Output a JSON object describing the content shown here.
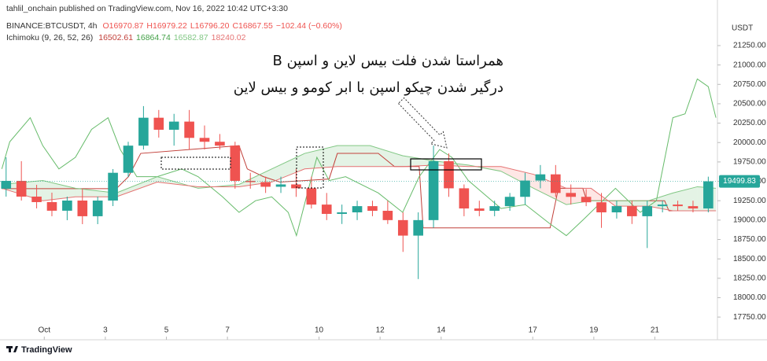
{
  "header": {
    "attribution": "tahlil_onchain published on TradingView.com, Nov 16, 2022 10:42 UTC+3:30",
    "symbol": "BINANCE:BTCUSDT, 4h",
    "ohlc": [
      "O16970.87",
      "H16979.22",
      "L16796.20",
      "C16867.55",
      "−102.44 (−0.60%)"
    ],
    "indicator": "Ichimoku (9, 26, 52, 26)",
    "indicator_values": [
      {
        "text": "16502.61",
        "color": "#c2403a"
      },
      {
        "text": "16864.74",
        "color": "#43a047"
      },
      {
        "text": "16582.87",
        "color": "#81c784"
      },
      {
        "text": "18240.02",
        "color": "#e57373"
      }
    ]
  },
  "footer": {
    "brand": "TradingView"
  },
  "chart_data": {
    "type": "candlestick",
    "y_axis_label": "USDT",
    "annotations": [
      "همراستا شدن فلت بیس لاین و اسپن B",
      "درگیر شدن چیکو اسپن با ابر کومو و بیس لاین"
    ],
    "up_color": "#26a69a",
    "down_color": "#ef5350",
    "x": [
      -0.25,
      0.25,
      0.75,
      1.25,
      1.75,
      2.25,
      2.75,
      3.25,
      3.75,
      4.25,
      4.75,
      5.25,
      5.75,
      6.25,
      6.75,
      7.25,
      7.75,
      8.25,
      8.75,
      9.25,
      9.75,
      10.25,
      10.75,
      11.25,
      11.75,
      12.25,
      12.75,
      13.25,
      13.75,
      14.25,
      14.75,
      15.25,
      15.75,
      16.25,
      16.75,
      17.25,
      17.75,
      18.25,
      18.75,
      19.25,
      19.75,
      20.25,
      20.75,
      21.25,
      21.75,
      22.25,
      22.75
    ],
    "open": [
      19405,
      19506,
      19303,
      19232,
      19121,
      19252,
      19050,
      19252,
      19610,
      19960,
      20320,
      20165,
      20270,
      20060,
      20010,
      19960,
      19506,
      19490,
      19430,
      19460,
      19410,
      19200,
      19080,
      19100,
      19180,
      19120,
      19000,
      18800,
      19000,
      19760,
      19410,
      19150,
      19120,
      19180,
      19300,
      19510,
      19590,
      19350,
      19300,
      19230,
      19100,
      19180,
      19050,
      19180,
      19200,
      19180,
      19150
    ],
    "high": [
      19810,
      19760,
      19455,
      19354,
      19303,
      19405,
      19303,
      19658,
      20010,
      20470,
      20420,
      20370,
      20420,
      20220,
      20110,
      20010,
      19610,
      19560,
      19560,
      19660,
      19560,
      19350,
      19200,
      19250,
      19250,
      19250,
      19100,
      19100,
      19960,
      19860,
      19460,
      19250,
      19250,
      19350,
      19610,
      19710,
      19710,
      19460,
      19400,
      19350,
      19250,
      19250,
      19250,
      19250,
      19250,
      19250,
      19560
    ],
    "low": [
      19303,
      19252,
      19151,
      19050,
      18999,
      18948,
      18948,
      19181,
      19557,
      19910,
      20064,
      19960,
      19910,
      19910,
      19910,
      19405,
      19405,
      19350,
      19350,
      19300,
      19150,
      19000,
      18950,
      19000,
      19050,
      18950,
      18590,
      18240,
      18900,
      19300,
      19050,
      19050,
      19050,
      19120,
      19200,
      19410,
      19300,
      19200,
      19180,
      18900,
      19020,
      18950,
      18640,
      19100,
      19120,
      19100,
      19100
    ],
    "close": [
      19506,
      19303,
      19232,
      19121,
      19252,
      19050,
      19252,
      19610,
      19960,
      20320,
      20165,
      20270,
      20060,
      20010,
      19960,
      19506,
      19490,
      19430,
      19460,
      19410,
      19200,
      19080,
      19100,
      19180,
      19120,
      19000,
      18800,
      19000,
      19760,
      19410,
      19150,
      19120,
      19180,
      19300,
      19510,
      19590,
      19350,
      19300,
      19230,
      19100,
      19180,
      19050,
      19180,
      19200,
      19180,
      19150,
      19500
    ],
    "last_price": {
      "value": 19499.83,
      "label": "19499.83"
    },
    "series": [
      {
        "color": "#c2403a",
        "x": [
          -0.39,
          3.36,
          3.76,
          4.16,
          7.38,
          7.65,
          8.18,
          8.72,
          10.33,
          10.6,
          11.94,
          12.47,
          13.28,
          13.41,
          17.57,
          17.84,
          18.64,
          18.77,
          21.32,
          21.46,
          23.0
        ],
        "values": [
          19405,
          19405,
          19560,
          19860,
          19960,
          19660,
          19560,
          19490,
          19530,
          19860,
          19860,
          19690,
          19690,
          18900,
          18900,
          19410,
          19410,
          19250,
          19250,
          19120,
          19120
        ]
      },
      {
        "color": "#66bb6a",
        "x": [
          -0.39,
          -0.13,
          0.54,
          0.95,
          1.48,
          2.02,
          2.55,
          3.09,
          3.49,
          4.03,
          4.7,
          5.5,
          6.04,
          6.84,
          7.38,
          7.92,
          8.45,
          8.99,
          9.26,
          9.66,
          9.93,
          10.33,
          10.87,
          11.94,
          12.74,
          13.28,
          13.95,
          14.35,
          14.89,
          15.96,
          16.76,
          17.57,
          18.1,
          18.64,
          19.71,
          20.52,
          21.05,
          21.59,
          21.99,
          22.39,
          22.75,
          23.0
        ],
        "values": [
          19660,
          20010,
          20320,
          19960,
          19660,
          19810,
          20170,
          20320,
          19910,
          19560,
          19560,
          19660,
          19560,
          19300,
          19100,
          19250,
          19300,
          19100,
          18800,
          19410,
          19810,
          19510,
          19560,
          19350,
          19100,
          19560,
          19910,
          19810,
          19510,
          19150,
          19200,
          18950,
          18800,
          19000,
          19410,
          19100,
          19250,
          20320,
          20370,
          20820,
          20720,
          20320
        ]
      },
      {
        "color": "#81c784",
        "x": [
          -0.39,
          0.95,
          2.02,
          3.36,
          4.7,
          6.04,
          7.38,
          8.45,
          9.53,
          10.6,
          11.67,
          12.74,
          13.82,
          14.89,
          15.96,
          17.03,
          18.1,
          18.91,
          19.71,
          20.79,
          21.59,
          22.39,
          23.0
        ],
        "values": [
          19460,
          19510,
          19410,
          19350,
          19560,
          19410,
          19460,
          19660,
          19860,
          19960,
          19960,
          19830,
          19760,
          19710,
          19630,
          19410,
          19200,
          19250,
          19250,
          19250,
          19350,
          19430,
          19410
        ]
      },
      {
        "color": "#e57373",
        "x": [
          -0.39,
          0.95,
          2.02,
          3.36,
          4.7,
          6.04,
          7.38,
          8.45,
          9.53,
          10.6,
          11.67,
          12.74,
          13.82,
          14.89,
          15.96,
          17.03,
          18.1,
          18.91,
          19.71,
          20.79,
          21.59,
          22.39,
          23.0
        ],
        "values": [
          19410,
          19250,
          19300,
          19300,
          19490,
          19430,
          19430,
          19490,
          19660,
          19690,
          19690,
          19690,
          19710,
          19690,
          19690,
          19590,
          19410,
          19410,
          19180,
          19180,
          19120,
          19120,
          19120
        ]
      }
    ],
    "cloud_colors": [
      "rgba(76,175,80,0.15)",
      "rgba(244,67,54,0.13)"
    ],
    "xlim": [
      -0.45,
      23.05
    ],
    "xticks": [
      {
        "value": 1,
        "label": "Oct"
      },
      3,
      5,
      7,
      10,
      12,
      14,
      17,
      19,
      21
    ],
    "ylim": [
      17660,
      21635
    ],
    "yticks": [
      {
        "value": 17750,
        "label": "17750.00"
      },
      {
        "value": 18000,
        "label": "18000.00"
      },
      {
        "value": 18250,
        "label": "18250.00"
      },
      {
        "value": 18500,
        "label": "18500.00"
      },
      {
        "value": 18750,
        "label": "18750.00"
      },
      {
        "value": 19000,
        "label": "19000.00"
      },
      {
        "value": 19250,
        "label": "19250.00"
      },
      {
        "value": 19500,
        "label": "19500.00"
      },
      {
        "value": 19750,
        "label": "19750.00"
      },
      {
        "value": 20000,
        "label": "20000.00"
      },
      {
        "value": 20250,
        "label": "20250.00"
      },
      {
        "value": 20500,
        "label": "20500.00"
      },
      {
        "value": 20750,
        "label": "20750.00"
      },
      {
        "value": 21000,
        "label": "21000.00"
      },
      {
        "value": 21250,
        "label": "21250.00"
      }
    ],
    "grid": false
  }
}
